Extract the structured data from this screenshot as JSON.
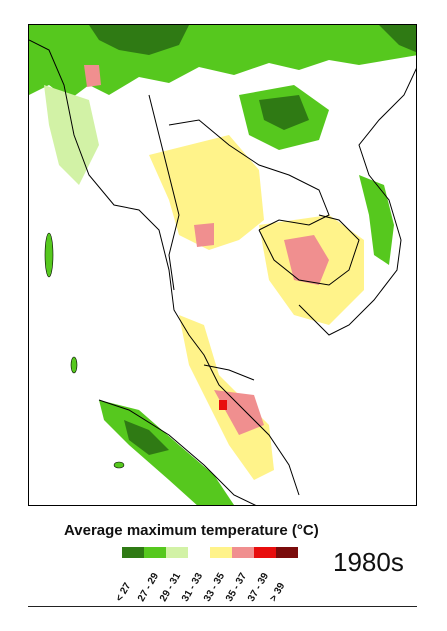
{
  "map": {
    "region": "Mainland Southeast Asia",
    "land_color": "#ffffff",
    "border_color": "#000000"
  },
  "legend": {
    "title": "Average maximum temperature (°C)",
    "classes": [
      {
        "label": "< 27",
        "color": "#2f7a14"
      },
      {
        "label": "27 - 29",
        "color": "#56c81e"
      },
      {
        "label": "29 - 31",
        "color": "#d2f2a6"
      },
      {
        "label": "31 - 33",
        "color": "#ffffff"
      },
      {
        "label": "33 - 35",
        "color": "#fff38a"
      },
      {
        "label": "35 - 37",
        "color": "#f08f8f"
      },
      {
        "label": "37 - 39",
        "color": "#e80d0d"
      },
      {
        "label": "> 39",
        "color": "#7a0b0b"
      }
    ]
  },
  "decade": "1980s"
}
